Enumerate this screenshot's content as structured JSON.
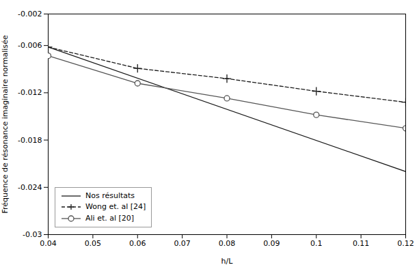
{
  "chart_data": {
    "type": "line",
    "xlabel": "h/L",
    "ylabel": "Fréquence de résonance imaginaire normalisée",
    "xlim": [
      0.04,
      0.12
    ],
    "xticks": [
      0.04,
      0.05,
      0.06,
      0.07,
      0.08,
      0.09,
      0.1,
      0.11,
      0.12
    ],
    "ylim": [
      -0.03,
      -0.002
    ],
    "yticks": [
      -0.03,
      -0.024,
      -0.018,
      -0.012,
      -0.006,
      -0.002
    ],
    "grid": false,
    "legend": "lower left",
    "series": [
      {
        "name": "Nos résultats",
        "color": "#1a1a1a",
        "line_style": "solid",
        "x": [
          0.04,
          0.12
        ],
        "values": [
          -0.0062,
          -0.022
        ]
      },
      {
        "name": "Wong et. al [24]",
        "color": "#1a1a1a",
        "line_style": "dashed",
        "marker": "plus",
        "x": [
          0.04,
          0.06,
          0.08,
          0.1,
          0.12
        ],
        "values": [
          -0.0062,
          -0.0089,
          -0.0102,
          -0.0118,
          -0.0132
        ]
      },
      {
        "name": "Ali et. al [20]",
        "color": "#555555",
        "line_style": "solid",
        "marker": "circle",
        "x": [
          0.04,
          0.06,
          0.08,
          0.1,
          0.12
        ],
        "values": [
          -0.0073,
          -0.0108,
          -0.0127,
          -0.0148,
          -0.0165
        ]
      }
    ]
  }
}
